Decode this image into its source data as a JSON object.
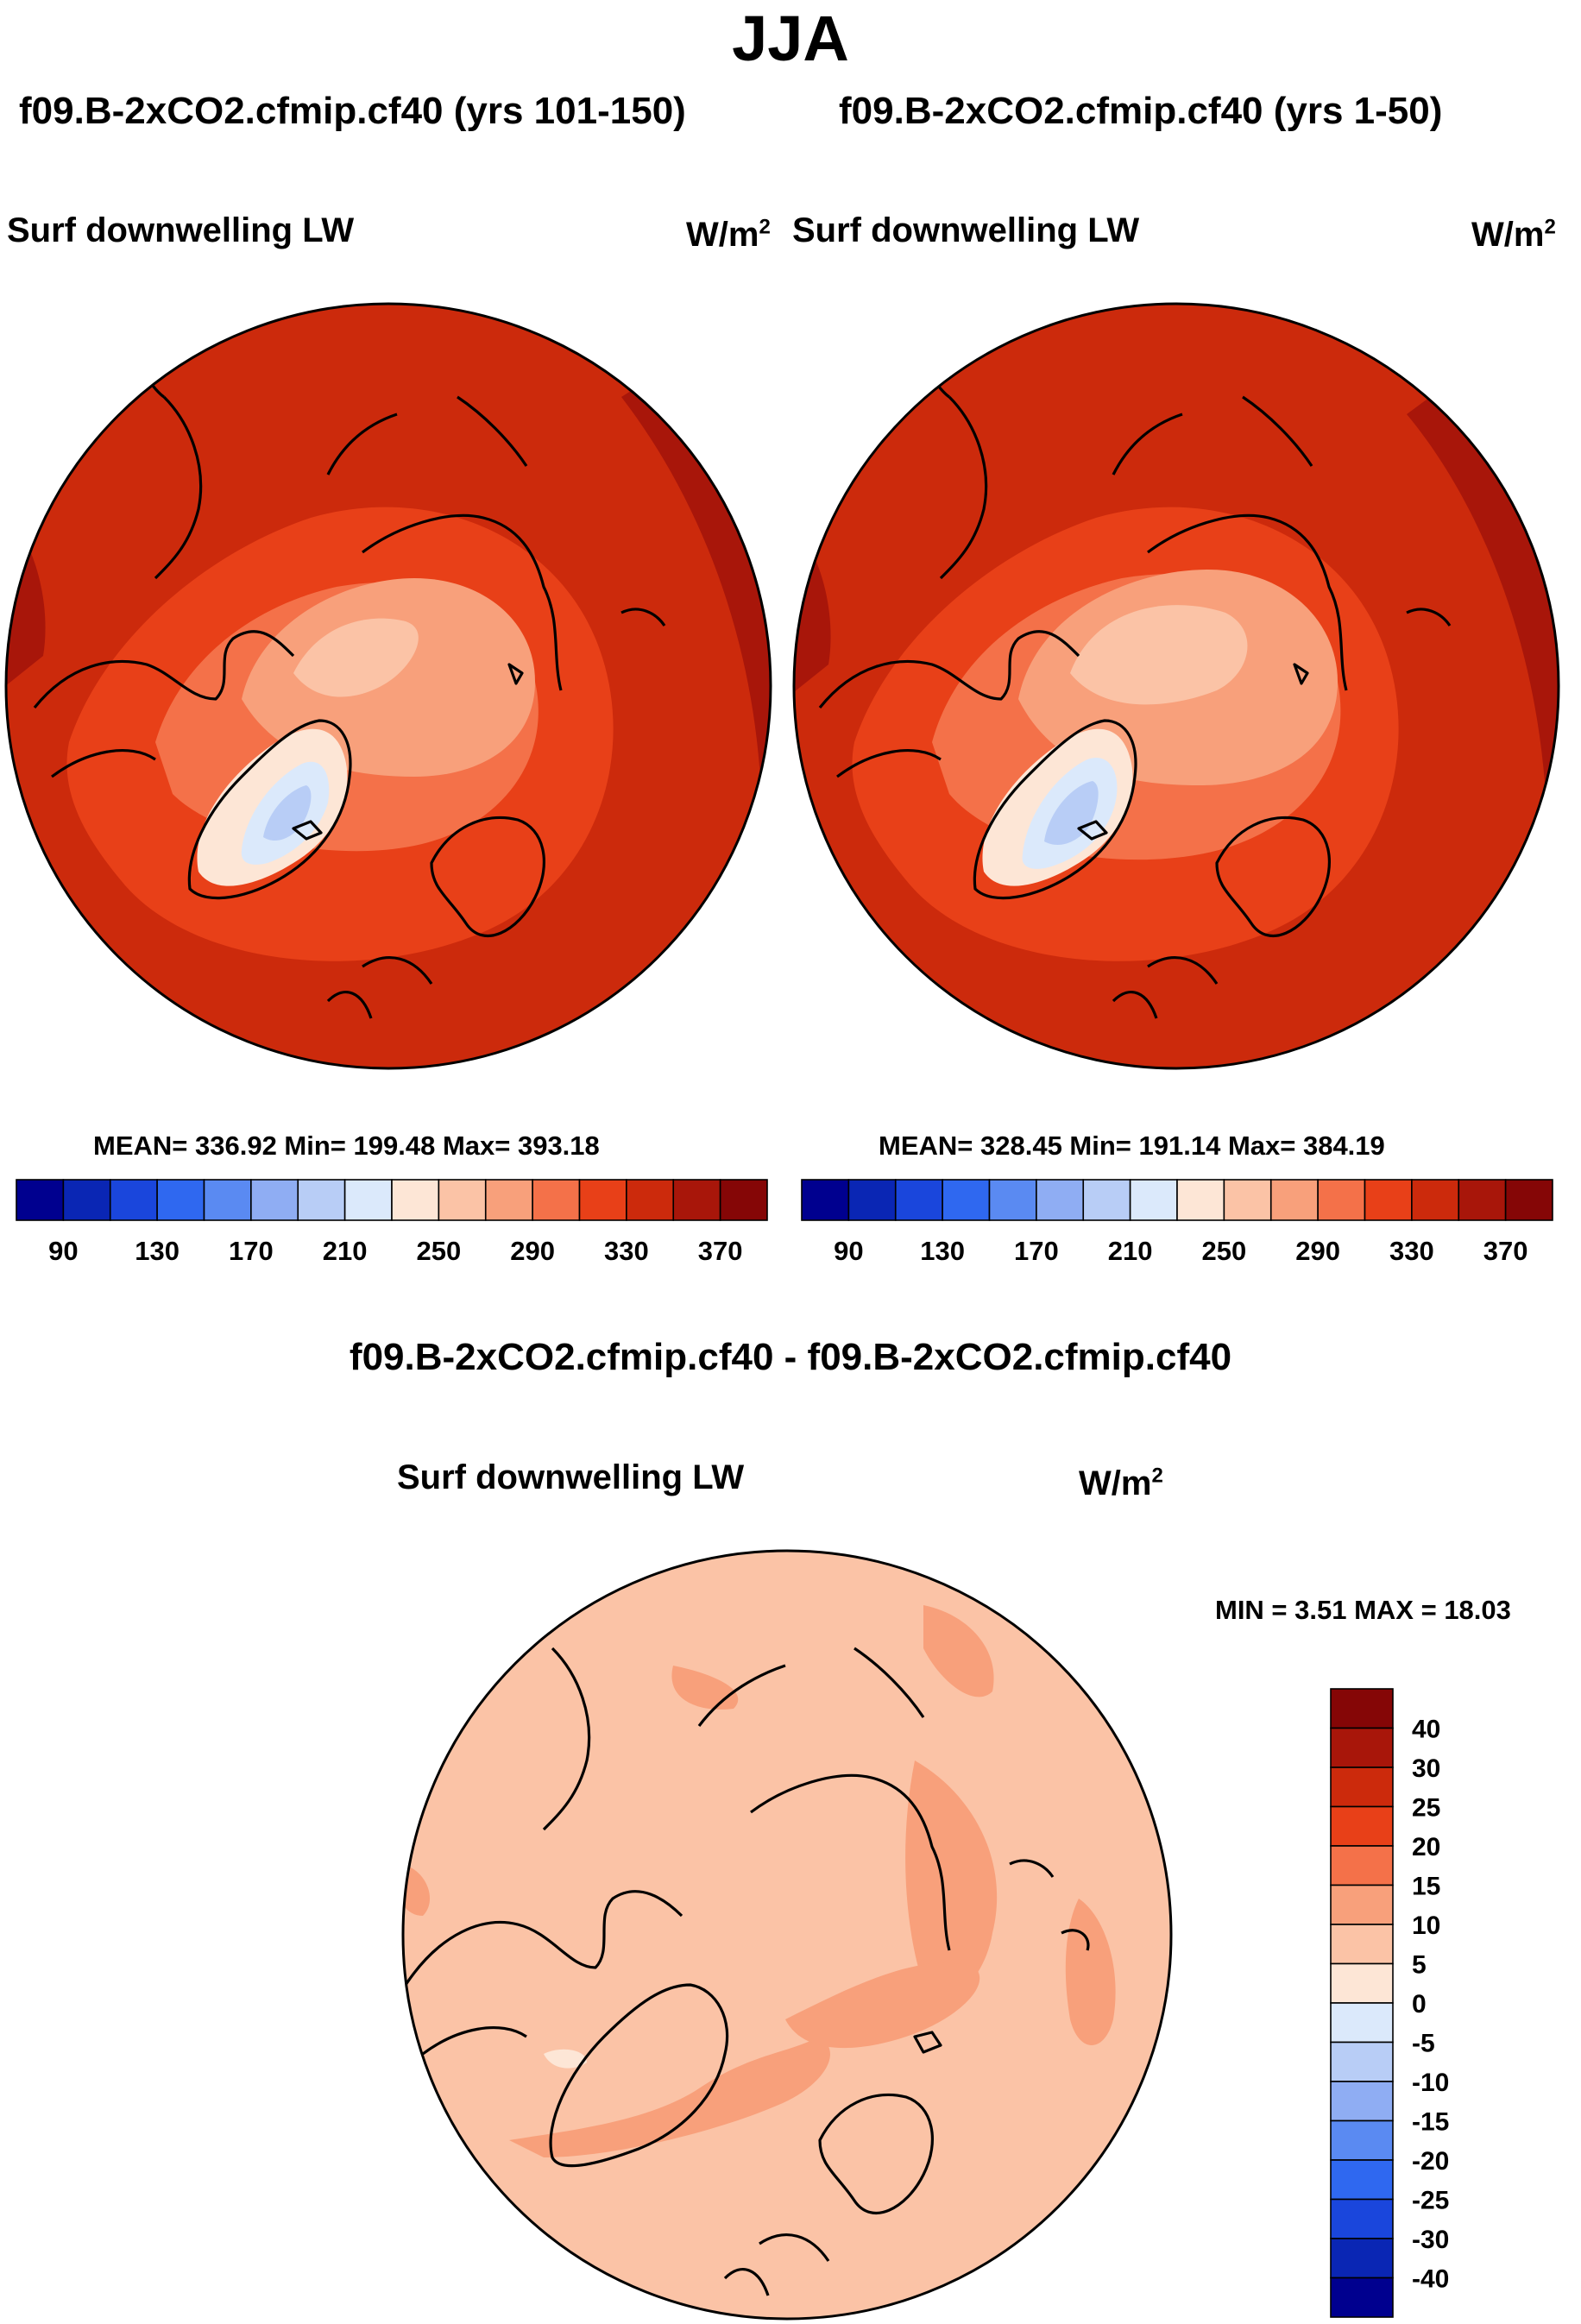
{
  "title": "JJA",
  "panels": [
    {
      "subtitle": "f09.B-2xCO2.cfmip.cf40 (yrs 101-150)",
      "variable": "Surf downwelling LW",
      "units_base": "W/m",
      "units_exp": "2",
      "stats": "MEAN= 336.92  Min= 199.48  Max= 393.18"
    },
    {
      "subtitle": "f09.B-2xCO2.cfmip.cf40 (yrs 1-50)",
      "variable": "Surf downwelling LW",
      "units_base": "W/m",
      "units_exp": "2",
      "stats": "MEAN= 328.45  Min= 191.14  Max= 384.19"
    }
  ],
  "difference": {
    "subtitle": "f09.B-2xCO2.cfmip.cf40 - f09.B-2xCO2.cfmip.cf40",
    "variable": "Surf downwelling LW",
    "units_base": "W/m",
    "units_exp": "2",
    "minmax": "MIN =   3.51 MAX =  18.03"
  },
  "chart_data": [
    {
      "type": "heatmap",
      "projection": "north-polar-stereographic",
      "title": "f09.B-2xCO2.cfmip.cf40 (yrs 101-150)",
      "variable": "Surf downwelling LW",
      "units": "W/m2",
      "stats": {
        "mean": 336.92,
        "min": 199.48,
        "max": 393.18
      },
      "colorbar": {
        "orientation": "horizontal",
        "tick_labels": [
          "90",
          "130",
          "170",
          "210",
          "250",
          "290",
          "330",
          "370"
        ],
        "levels": [
          90,
          110,
          130,
          150,
          170,
          190,
          210,
          230,
          250,
          270,
          290,
          310,
          330,
          350,
          370
        ],
        "colors": [
          "#00008f",
          "#0a26b4",
          "#1a46dc",
          "#2f68f0",
          "#5a8af2",
          "#8fadf3",
          "#b8cdf6",
          "#dbe9fb",
          "#fde6d6",
          "#fbc3a6",
          "#f8a07b",
          "#f47149",
          "#e84018",
          "#cc2a0c",
          "#a8160a",
          "#850606"
        ]
      }
    },
    {
      "type": "heatmap",
      "projection": "north-polar-stereographic",
      "title": "f09.B-2xCO2.cfmip.cf40 (yrs 1-50)",
      "variable": "Surf downwelling LW",
      "units": "W/m2",
      "stats": {
        "mean": 328.45,
        "min": 191.14,
        "max": 384.19
      },
      "colorbar": {
        "orientation": "horizontal",
        "tick_labels": [
          "90",
          "130",
          "170",
          "210",
          "250",
          "290",
          "330",
          "370"
        ],
        "levels": [
          90,
          110,
          130,
          150,
          170,
          190,
          210,
          230,
          250,
          270,
          290,
          310,
          330,
          350,
          370
        ],
        "colors": [
          "#00008f",
          "#0a26b4",
          "#1a46dc",
          "#2f68f0",
          "#5a8af2",
          "#8fadf3",
          "#b8cdf6",
          "#dbe9fb",
          "#fde6d6",
          "#fbc3a6",
          "#f8a07b",
          "#f47149",
          "#e84018",
          "#cc2a0c",
          "#a8160a",
          "#850606"
        ]
      }
    },
    {
      "type": "heatmap",
      "projection": "north-polar-stereographic",
      "title": "f09.B-2xCO2.cfmip.cf40 - f09.B-2xCO2.cfmip.cf40",
      "variable": "Surf downwelling LW",
      "units": "W/m2",
      "stats": {
        "min": 3.51,
        "max": 18.03
      },
      "colorbar": {
        "orientation": "vertical",
        "tick_labels": [
          "40",
          "30",
          "25",
          "20",
          "15",
          "10",
          "5",
          "0",
          "-5",
          "-10",
          "-15",
          "-20",
          "-25",
          "-30",
          "-40"
        ],
        "colors_top_to_bottom": [
          "#850606",
          "#a8160a",
          "#cc2a0c",
          "#e84018",
          "#f47149",
          "#f8a07b",
          "#fbc3a6",
          "#fde6d6",
          "#dbe9fb",
          "#b8cdf6",
          "#8fadf3",
          "#5a8af2",
          "#2f68f0",
          "#1a46dc",
          "#0a26b4",
          "#00008f"
        ]
      }
    }
  ]
}
